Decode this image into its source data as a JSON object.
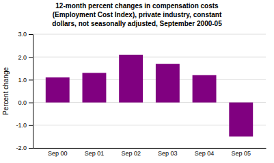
{
  "chart_data": {
    "type": "bar",
    "title": "12-month percent changes in compensation costs\n(Employment Cost Index), private industry, constant\ndollars, not seasonally adjusted, September 2000-05",
    "ylabel": "Percent change",
    "categories": [
      "Sep 00",
      "Sep 01",
      "Sep 02",
      "Sep 03",
      "Sep 04",
      "Sep 05"
    ],
    "values": [
      1.1,
      1.3,
      2.1,
      1.7,
      1.2,
      -1.5
    ],
    "color": "#800080",
    "ylim": [
      -2.0,
      3.0
    ],
    "yticks": [
      {
        "value": -2.0,
        "label": "-2.0"
      },
      {
        "value": -1.0,
        "label": "-1.0"
      },
      {
        "value": 0.0,
        "label": "0.0"
      },
      {
        "value": 1.0,
        "label": "1.0"
      },
      {
        "value": 2.0,
        "label": "2.0"
      },
      {
        "value": 3.0,
        "label": "3.0"
      }
    ],
    "grid": true
  }
}
